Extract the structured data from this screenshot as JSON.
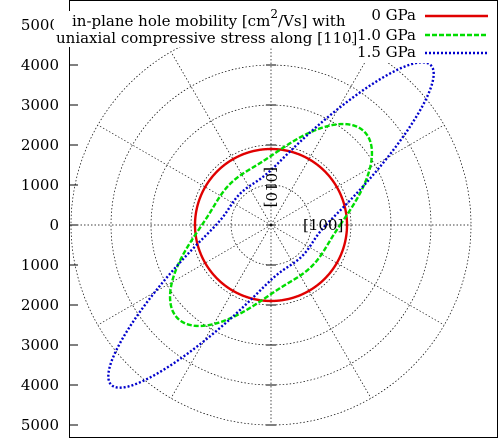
{
  "chart_data": {
    "type": "polar",
    "title": {
      "line1_pre": "in-plane hole mobility [cm",
      "line1_sup": "2",
      "line1_post": "/Vs] with",
      "line2": "uniaxial compressive stress along [110]"
    },
    "r_axis": {
      "ticks": [
        5000,
        4000,
        3000,
        2000,
        1000,
        0,
        1000,
        2000,
        3000,
        4000,
        5000
      ],
      "range": [
        0,
        5000
      ]
    },
    "polar_grid": {
      "rings": [
        1000,
        2000,
        3000,
        4000,
        5000
      ],
      "spoke_step_deg": 30
    },
    "annotations": {
      "y_direction": "[010]",
      "x_direction": "[100]"
    },
    "legend": {
      "position": "top-right",
      "entries": [
        "0 GPa",
        "1.0 GPa",
        "1.5 GPa"
      ]
    },
    "colors": [
      "#e00000",
      "#00dd00",
      "#0000cc"
    ],
    "series": [
      {
        "name": "0 GPa",
        "along_110": 1900,
        "along_1m10": 1900,
        "warp": 0
      },
      {
        "name": "1.0 GPa",
        "along_110": 3300,
        "along_1m10": 1450,
        "warp": 0.08
      },
      {
        "name": "1.5 GPa",
        "along_110": 5650,
        "along_1m10": 1100,
        "warp": 0.1
      }
    ]
  }
}
